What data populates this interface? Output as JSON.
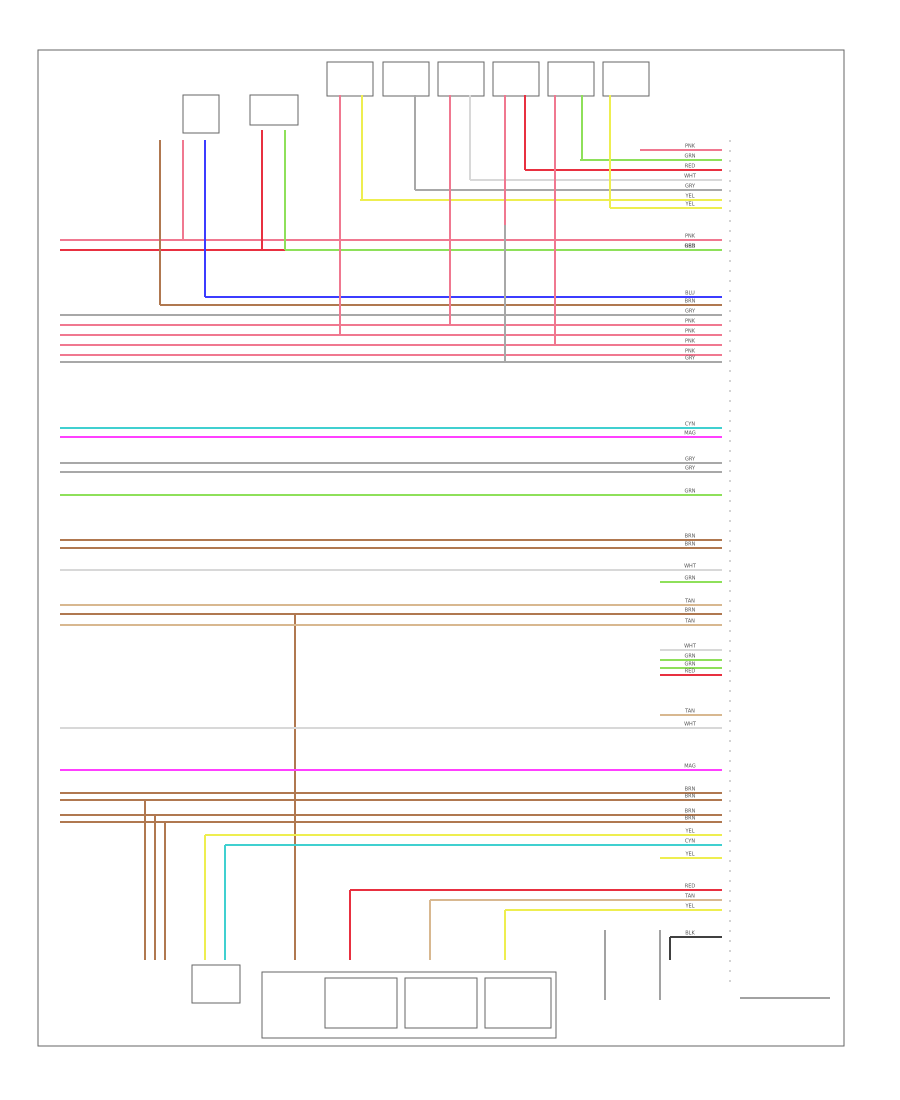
{
  "diagram": {
    "wire_colors": [
      {
        "code": "PNK",
        "color": "#f07890"
      },
      {
        "code": "RED",
        "color": "#e83040"
      },
      {
        "code": "GRN",
        "color": "#8ee05a"
      },
      {
        "code": "BLU",
        "color": "#3c3cff"
      },
      {
        "code": "BRN",
        "color": "#b07850"
      },
      {
        "code": "GRY",
        "color": "#a8a8a8"
      },
      {
        "code": "YEL",
        "color": "#eeee50"
      },
      {
        "code": "MAG",
        "color": "#ff40ff"
      },
      {
        "code": "CYN",
        "color": "#40d0d0"
      },
      {
        "code": "TAN",
        "color": "#d8b890"
      },
      {
        "code": "BLK",
        "color": "#404040"
      },
      {
        "code": "WHT",
        "color": "#d8d8d8"
      }
    ]
  }
}
